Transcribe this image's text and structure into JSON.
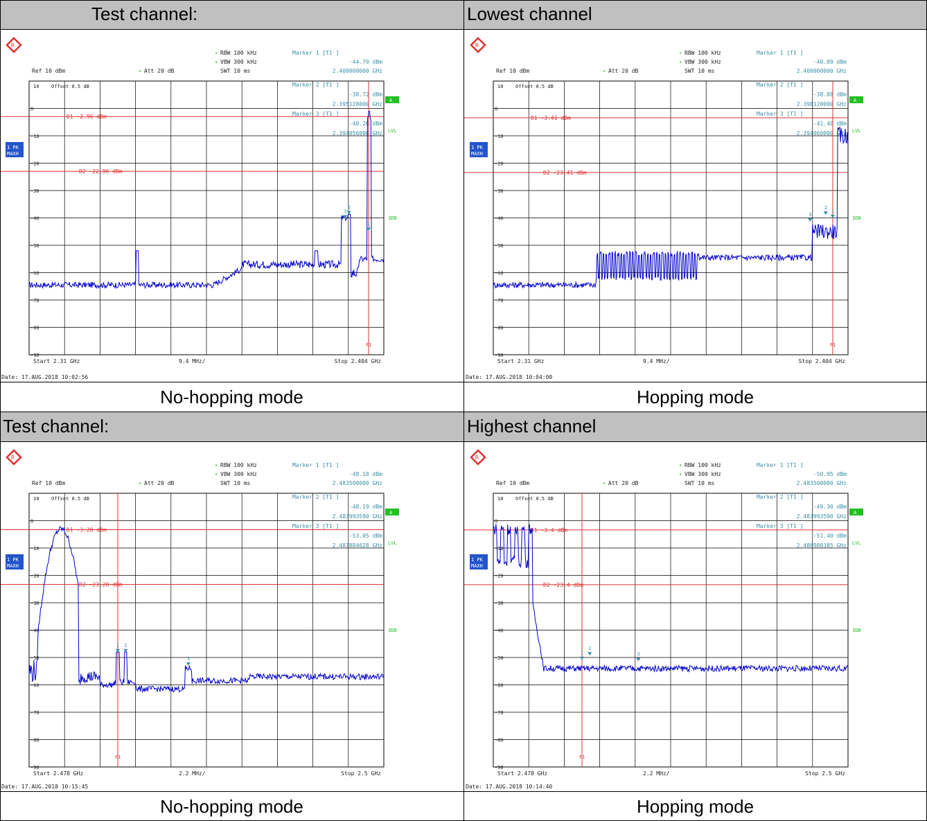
{
  "colors": {
    "trace": "#0000cc",
    "limit": "#e03030",
    "text": "#3a8fa8",
    "status_green": "#22c022",
    "badge_blue": "#2255cc",
    "header_gray": "#c0c0c0"
  },
  "icons": [
    "rohde-schwarz-logo-icon"
  ],
  "blocks": [
    {
      "header_left": "Test channel:",
      "header_right": "Lowest channel",
      "caption_left": "No-hopping mode",
      "caption_right": "Hopping mode",
      "panels": [
        {
          "rbw": "RBW 100 kHz",
          "vbw": "VBW 300 kHz",
          "swt": "SWT 10 ms",
          "ref": "Ref  10 dBm",
          "att": "Att  20 dB",
          "offset": "10 Offset  0.5 dB",
          "m1_label": "Marker 1 [T1 ]",
          "m1_val": "-44.79 dBm",
          "m1_freq": "2.400000000 GHz",
          "m2_label": "Marker 2 [T1 ]",
          "m2_val": "-38.72 dBm",
          "m2_freq": "2.395128000 GHz",
          "m3_label": "Marker 3 [T1 ]",
          "m3_val": "-40.26 dBm",
          "m3_freq": "2.394056000 GHz",
          "d1": "D1 -2.96 dBm",
          "d2": "D2 -22.96 dBm",
          "start": "Start 2.31 GHz",
          "span": "9.4 MHz/",
          "stop": "Stop 2.404 GHz",
          "date": "Date: 17.AUG.2018  10:02:56",
          "badge1": "1 PK",
          "badge2": "MAXH",
          "stat_a": "A",
          "stat_lvl": "LVL",
          "stat_3db": "3DB",
          "f1": "F1",
          "ylabels": [
            "10",
            "0",
            "-10",
            "-20",
            "-30",
            "-40",
            "-50",
            "-60",
            "-70",
            "-80",
            "-90"
          ],
          "d1_level": -2.96,
          "d2_level": -22.96,
          "f1_pos": 0.957,
          "markers": [
            {
              "n": "1",
              "x": 0.957,
              "y": -44.79
            },
            {
              "n": "2",
              "x": 0.902,
              "y": -38.72
            },
            {
              "n": "3",
              "x": 0.891,
              "y": -40.26
            }
          ],
          "trace_type": "low_nohop"
        },
        {
          "rbw": "RBW 100 kHz",
          "vbw": "VBW 300 kHz",
          "swt": "SWT 10 ms",
          "ref": "Ref  10 dBm",
          "att": "Att  20 dB",
          "offset": "10 Offset  0.5 dB",
          "m1_label": "Marker 1 [T1 ]",
          "m1_val": "-40.09 dBm",
          "m1_freq": "2.400000000 GHz",
          "m2_label": "Marker 2 [T1 ]",
          "m2_val": "-38.88 dBm",
          "m2_freq": "2.398120000 GHz",
          "m3_label": "Marker 3 [T1 ]",
          "m3_val": "-41.40 dBm",
          "m3_freq": "2.394060000 GHz",
          "d1": "D1 -3.41 dBm",
          "d2": "D2 -23.41 dBm",
          "start": "Start 2.31 GHz",
          "span": "9.4 MHz/",
          "stop": "Stop 2.404 GHz",
          "date": "Date: 17.AUG.2018  10:04:00",
          "badge1": "1 PK",
          "badge2": "MAXH",
          "stat_a": "A",
          "stat_lvl": "LVL",
          "stat_3db": "3DB",
          "f1": "F1",
          "ylabels": [
            "10",
            "0",
            "-10",
            "-20",
            "-30",
            "-40",
            "-50",
            "-60",
            "-70",
            "-80",
            "-90"
          ],
          "d1_level": -3.41,
          "d2_level": -23.41,
          "f1_pos": 0.957,
          "markers": [
            {
              "n": "1",
              "x": 0.957,
              "y": -40.09
            },
            {
              "n": "2",
              "x": 0.937,
              "y": -38.88
            },
            {
              "n": "3",
              "x": 0.893,
              "y": -41.4
            }
          ],
          "trace_type": "low_hop"
        }
      ]
    },
    {
      "header_left": "Test channel:",
      "header_right": "Highest channel",
      "caption_left": "No-hopping mode",
      "caption_right": "Hopping mode",
      "panels": [
        {
          "rbw": "RBW 100 kHz",
          "vbw": "VBW 300 kHz",
          "swt": "SWT 10 ms",
          "ref": "Ref  10 dBm",
          "att": "Att  20 dB",
          "offset": "10 Offset  0.5 dB",
          "m1_label": "Marker 1 [T1 ]",
          "m1_val": "-48.18 dBm",
          "m1_freq": "2.483500000 GHz",
          "m2_label": "Marker 2 [T1 ]",
          "m2_val": "-48.19 dBm",
          "m2_freq": "2.483993590 GHz",
          "m3_label": "Marker 3 [T1 ]",
          "m3_val": "-53.05 dBm",
          "m3_freq": "2.487884628 GHz",
          "d1": "D1 -3.28 dBm",
          "d2": "D2 -23.28 dBm",
          "start": "Start 2.478 GHz",
          "span": "2.2 MHz/",
          "stop": "Stop 2.5 GHz",
          "date": "Date: 17.AUG.2018  10:15:45",
          "badge1": "1 PK",
          "badge2": "MAXH",
          "stat_a": "A",
          "stat_lvl": "LVL",
          "stat_3db": "3DB",
          "f1": "F1",
          "ylabels": [
            "10",
            "0",
            "-10",
            "-20",
            "-30",
            "-40",
            "-50",
            "-60",
            "-70",
            "-80",
            "-90"
          ],
          "d1_level": -3.28,
          "d2_level": -23.28,
          "f1_pos": 0.25,
          "markers": [
            {
              "n": "1",
              "x": 0.25,
              "y": -48.18
            },
            {
              "n": "2",
              "x": 0.272,
              "y": -48.19
            },
            {
              "n": "3",
              "x": 0.449,
              "y": -53.05
            }
          ],
          "trace_type": "high_nohop"
        },
        {
          "rbw": "RBW 100 kHz",
          "vbw": "VBW 300 kHz",
          "swt": "SWT 10 ms",
          "ref": "Ref  10 dBm",
          "att": "Att  20 dB",
          "offset": "10 Offset  0.5 dB",
          "m1_label": "Marker 1 [T1 ]",
          "m1_val": "-50.95 dBm",
          "m1_freq": "2.483500000 GHz",
          "m2_label": "Marker 2 [T1 ]",
          "m2_val": "-49.30 dBm",
          "m2_freq": "2.483993590 GHz",
          "m3_label": "Marker 3 [T1 ]",
          "m3_val": "-51.40 dBm",
          "m3_freq": "2.486980385 GHz",
          "d1": "D1 -3.4 dBm",
          "d2": "D2 -23.4 dBm",
          "start": "Start 2.478 GHz",
          "span": "2.2 MHz/",
          "stop": "Stop 2.5 GHz",
          "date": "Date: 17.AUG.2018  10:14:40",
          "badge1": "1 PK",
          "badge2": "MAXH",
          "stat_a": "A",
          "stat_lvl": "LVL",
          "stat_3db": "3DB",
          "f1": "F1",
          "ylabels": [
            "10",
            "0",
            "-10",
            "-20",
            "-30",
            "-40",
            "-50",
            "-60",
            "-70",
            "-80",
            "-90"
          ],
          "d1_level": -3.4,
          "d2_level": -23.4,
          "f1_pos": 0.25,
          "markers": [
            {
              "n": "1",
              "x": 0.25,
              "y": -50.95
            },
            {
              "n": "2",
              "x": 0.272,
              "y": -49.3
            },
            {
              "n": "3",
              "x": 0.409,
              "y": -51.4
            }
          ],
          "trace_type": "high_hop"
        }
      ]
    }
  ]
}
